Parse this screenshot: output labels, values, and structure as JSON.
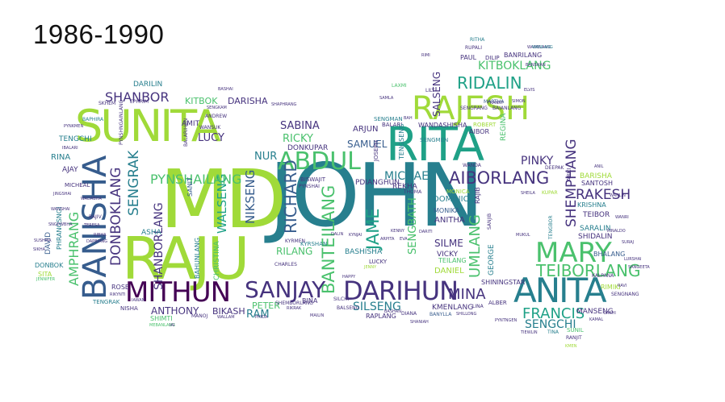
{
  "title": "1986-1990",
  "colors": {
    "dark_purple": "#46337e",
    "blue": "#365c8d",
    "mid_blue": "#277f8e",
    "teal": "#1fa187",
    "green": "#4ac16d",
    "lime": "#a0da39",
    "deep": "#440154"
  },
  "words": {
    "john": "JOHN",
    "md": "MD",
    "raju": "RAJU",
    "rita": "RITA",
    "sunita": "SUNITA",
    "rajesh": "RAJESH",
    "banisha": "BANISHA",
    "anita": "ANITA",
    "mithun": "MITHUN",
    "sanjay": "SANJAY",
    "darihun": "DARIHUN",
    "abdul": "ABDUL",
    "mary": "MARY",
    "aiborlang": "AIBORLANG",
    "ridalin": "RIDALIN",
    "teiborlang": "TEIBORLANG",
    "richard": "RICHARD",
    "banteilang": "BANTEILANG",
    "jame": "JAME",
    "niksеng": "NIKSENG",
    "walseng": "WALSENG",
    "shanbor": "SHANBOR",
    "shanborlang": "SHANBORLANG",
    "donboklang": "DONBOKLANG",
    "sengrak": "SENGRAK",
    "pynshailang": "PYNSHAILANG",
    "amphrang": "AMPHRANG",
    "shemphang": "SHEMPHANG",
    "rakesh": "RAKESH",
    "francis": "FRANCIS",
    "sengchi": "SENGCHI",
    "mina": "MINA",
    "kitboklang": "KITBOKLANG",
    "michael": "MICHAEL",
    "sabina": "SABINA",
    "ricky": "RICKY",
    "lucy": "LUCY",
    "nur": "NUR",
    "pinky": "PINKY",
    "samuel": "SAMUEL",
    "silme": "SILME",
    "umlang": "UMLANG",
    "silseng": "SILSENG",
    "rilang": "RILANG",
    "anthony": "ANTHONY",
    "peter": "PETER",
    "ram": "RAM",
    "bikash": "BIKASH",
    "darilin": "DARILIN",
    "kitbok": "KITBOK",
    "darisha": "DARISHA",
    "donkupar": "DONKUPAR",
    "sengbath": "SENGBATH",
    "anitha": "ANITHA",
    "monika": "MONIKA",
    "dominic": "DOMINIC",
    "bashisha": "BASHISHA",
    "rekha": "REKHA",
    "arjun": "ARJUN",
    "salseng": "SALSENG",
    "daniel": "DANIEL",
    "vicky": "VICKY",
    "teilang": "TEILANG",
    "raplang": "RAPLANG",
    "kmenlang": "KMENLANG",
    "shiningstar": "SHININGSTAR",
    "manseng": "MANSENG",
    "rimiki": "RIMIKI",
    "bhalang": "BHALANG",
    "saralin": "SARALIN",
    "shidalin": "SHIDALIN",
    "teibor": "TEIBOR",
    "krishna": "KRISHNA",
    "santosh": "SANTOSH",
    "barisha": "BARISHA",
    "tengchi": "TENGCHI",
    "rina": "RINA",
    "ajay": "AJAY",
    "micheal": "MICHEAL",
    "phrangsngi": "PHRANGSNGI",
    "donbok": "DONBOK",
    "sita": "SITA",
    "david": "DAVID",
    "asha": "ASHA",
    "rose": "ROSE",
    "nisha": "NISHA",
    "tengrak": "TENGRAK",
    "shimti": "SHIMTI",
    "wandashisha": "WANDASHISHA",
    "robert": "ROBERT",
    "balari": "BALARI",
    "paul": "PAUL",
    "banrilang": "BANRILANG",
    "sengman": "SENGMAN",
    "pdianghun": "PDIANGHUN",
    "bina": "BINA",
    "lucky": "LUCKY",
    "kyrshan": "KYRSHAN",
    "kyrmen": "KYRMEN",
    "charles": "CHARLES",
    "christina": "CHRISTINA",
    "bahunlang": "BAHUNLANG",
    "sanit": "SANIT",
    "amit": "AMIT",
    "wansuk": "WANSUK",
    "balarihun": "BALARIHUN",
    "pynshngainlang": "PYNSHNGAINLANG",
    "tengseng": "TENGSENG",
    "aibor": "AIBOR",
    "regina": "REGINA",
    "monica": "MONICA",
    "george": "GEORGE",
    "rajib": "RAJIB",
    "sengmen": "SENGMEN",
    "dilip": "DILIP",
    "ritha": "RITHA",
    "rupali": "RUPALI",
    "wanblang": "WANBLANG",
    "sengrang": "SENGRANG",
    "baianlang": "BAIANLANG",
    "laxmi": "LAXMI",
    "lily": "LILY",
    "martha": "MARTHA",
    "ranjit": "RANJIT",
    "sunil": "SUNIL",
    "kalpana": "KALPANA",
    "sengkarwar": "SENGNANG",
    "alber": "ALBER",
    "lina": "LINA",
    "banylla": "BANYLLA",
    "diana": "DIANA",
    "silchi": "SILCHI",
    "shembor": "SHEMBORLANG",
    "balseng": "BALSENG",
    "ricky2": "RIKRAK",
    "manoj": "MANOJ",
    "tina": "TINA",
    "ravi": "RAVI",
    "thoma": "THOMA",
    "lurshai": "LURSHAI",
    "deepak": "DEEPAK",
    "arki": "ARKI",
    "kupar": "KUPAR",
    "wanda": "WANDA",
    "sanjib": "SANJIB",
    "tengbor": "TENGBOR",
    "mukul": "MUKUL",
    "sikha": "SIKHA",
    "jennifer": "JENNIFER",
    "sushma": "SUSHMA",
    "sngewbha": "SNGEWBHA",
    "wanshai": "WANSHAI",
    "jingshai": "JINGSHAI",
    "wadabha": "WADABHA",
    "ibalari": "IBALARI",
    "pynkmen": "PYNKMEN",
    "baphira": "BAPHIRA",
    "skhem": "SKHEM",
    "ephrim": "EPHRIM",
    "rajiv": "RAJIV",
    "teresa": "TERESA",
    "ribha": "RIBHA",
    "dapbiang": "DAPBIANG",
    "rikynti": "RIKYNTI",
    "iawan": "IAWAN",
    "mebanlang": "MEBANLANG",
    "iai": "IAI",
    "wallam": "WALLAM",
    "phida": "PHIDA",
    "mailin": "MAILIN",
    "bashan": "BASHAN",
    "shaniah": "SHANIAH",
    "shillong": "SHILLONG",
    "pyntngen": "PYNTNGEN",
    "tiewlin": "TIEWLIN",
    "kmen": "KMEN",
    "lakhi": "LAKHI",
    "sangeeta": "SANGEETA",
    "suraj": "SURAJ",
    "wanlin": "WANLIN",
    "anil": "ANIL",
    "biswajit": "BISWAJIT",
    "pynshai": "PYNSHAI",
    "dalin": "DALIN",
    "kynjai": "KYNJAI",
    "happy": "HAPPY",
    "jenny": "JENNY",
    "arpita": "ARPITA",
    "joseph": "JOSEPH",
    "kenny": "KENNY",
    "eva": "EVA",
    "dariti": "DARITI",
    "rimi": "RIMI",
    "wanlang": "WANLANG",
    "andrew": "ANDREW",
    "sengkam": "SENGKAM",
    "shaphrang": "SHAPHRANG",
    "bashai": "BASHAI",
    "frankly": "FRANKY",
    "simon": "SIMON",
    "elvis": "ELVIS",
    "banshan": "BANSHAN",
    "samla": "SAMLA",
    "bah": "BAH",
    "sheila": "SHEILA",
    "wanri": "WANRI",
    "rina2": "RINALDO",
    "kamal": "KAMAL"
  }
}
